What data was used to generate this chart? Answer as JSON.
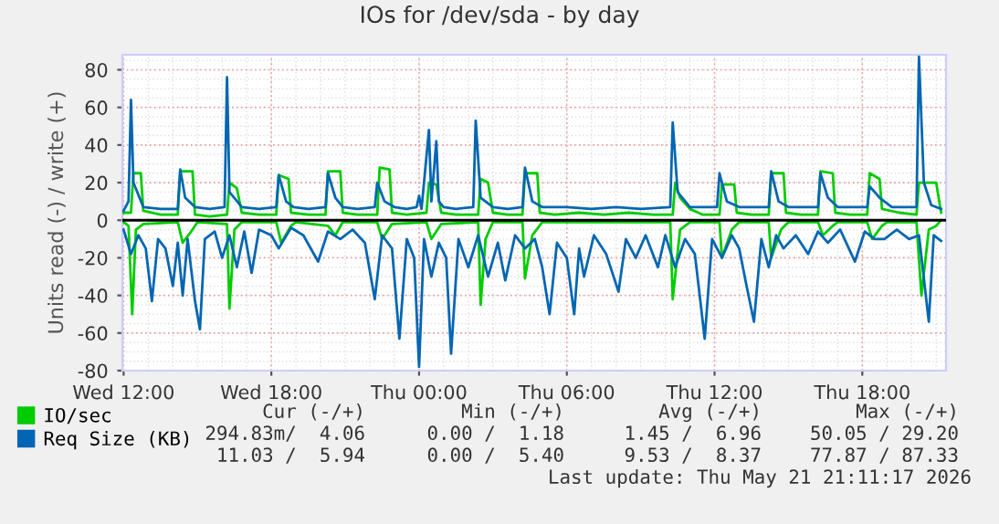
{
  "chart_data": {
    "type": "line",
    "title": "IOs for /dev/sda - by day",
    "ylabel": "Units read (-) / write (+)",
    "xlim": [
      "2026-05-20T11:57",
      "2026-05-21T21:24"
    ],
    "ylim": [
      -80,
      88
    ],
    "xticks": [
      {
        "value": "2026-05-20T12:00",
        "label": "Wed 12:00"
      },
      {
        "value": "2026-05-20T18:00",
        "label": "Wed 18:00"
      },
      {
        "value": "2026-05-21T00:00",
        "label": "Thu 00:00"
      },
      {
        "value": "2026-05-21T06:00",
        "label": "Thu 06:00"
      },
      {
        "value": "2026-05-21T12:00",
        "label": "Thu 12:00"
      },
      {
        "value": "2026-05-21T18:00",
        "label": "Thu 18:00"
      }
    ],
    "yticks": [
      -80,
      -60,
      -40,
      -20,
      0,
      20,
      40,
      60,
      80
    ],
    "grid": true,
    "legend": "bottom",
    "marker": "none",
    "line_style": "solid",
    "ref_lines": [
      {
        "axis": "y",
        "value": 0,
        "color": "#000000"
      }
    ],
    "series": [
      {
        "color": "#00cc00",
        "x": [
          "2026-05-20T12:00",
          "2026-05-20T12:12",
          "2026-05-20T12:21",
          "2026-05-20T12:30",
          "2026-05-20T12:48",
          "2026-05-20T14:12",
          "2026-05-20T14:24",
          "2026-05-20T14:48",
          "2026-05-20T15:00",
          "2026-05-20T16:12",
          "2026-05-20T16:18",
          "2026-05-20T16:30",
          "2026-05-20T16:48",
          "2026-05-20T18:12",
          "2026-05-20T18:24",
          "2026-05-20T18:48",
          "2026-05-20T19:00",
          "2026-05-20T20:18",
          "2026-05-20T20:36",
          "2026-05-20T20:54",
          "2026-05-20T22:18",
          "2026-05-20T22:30",
          "2026-05-20T22:54",
          "2026-05-21T00:18",
          "2026-05-21T00:30",
          "2026-05-21T00:54",
          "2026-05-21T02:24",
          "2026-05-21T02:30",
          "2026-05-21T02:42",
          "2026-05-21T03:00",
          "2026-05-21T04:12",
          "2026-05-21T04:18",
          "2026-05-21T04:36",
          "2026-05-21T05:00",
          "2026-05-21T10:12",
          "2026-05-21T10:18",
          "2026-05-21T10:36",
          "2026-05-21T11:00",
          "2026-05-21T12:12",
          "2026-05-21T12:18",
          "2026-05-21T12:42",
          "2026-05-21T13:00",
          "2026-05-21T14:12",
          "2026-05-21T14:18",
          "2026-05-21T14:42",
          "2026-05-21T15:00",
          "2026-05-21T16:12",
          "2026-05-21T16:24",
          "2026-05-21T16:48",
          "2026-05-21T17:00",
          "2026-05-21T18:12",
          "2026-05-21T18:24",
          "2026-05-21T18:48",
          "2026-05-21T19:00",
          "2026-05-21T20:12",
          "2026-05-21T20:24",
          "2026-05-21T20:42",
          "2026-05-21T21:00",
          "2026-05-21T21:12"
        ],
        "values": [
          -1,
          -3,
          -50,
          -5,
          -2,
          -1,
          -12,
          -5,
          -1,
          -2,
          -47,
          -5,
          -1,
          -1,
          -12,
          -3,
          -1,
          -3,
          -8,
          -1,
          -1,
          -10,
          -2,
          -1,
          -10,
          -2,
          -1,
          -45,
          -10,
          -1,
          -1,
          -31,
          -8,
          -1,
          -1,
          -42,
          -5,
          -1,
          -1,
          -20,
          -5,
          -1,
          -1,
          -20,
          -5,
          -1,
          -1,
          -8,
          -3,
          -1,
          -1,
          -10,
          -3,
          -1,
          -1,
          -40,
          -5,
          -3,
          0
        ]
      },
      {
        "color": "#0066b3",
        "x": [
          "2026-05-20T12:00",
          "2026-05-20T12:18",
          "2026-05-20T12:36",
          "2026-05-20T12:54",
          "2026-05-20T13:09",
          "2026-05-20T13:24",
          "2026-05-20T13:42",
          "2026-05-20T14:00",
          "2026-05-20T14:12",
          "2026-05-20T14:24",
          "2026-05-20T14:36",
          "2026-05-20T14:54",
          "2026-05-20T15:06",
          "2026-05-20T15:18",
          "2026-05-20T15:42",
          "2026-05-20T16:00",
          "2026-05-20T16:18",
          "2026-05-20T16:36",
          "2026-05-20T16:54",
          "2026-05-20T17:12",
          "2026-05-20T17:30",
          "2026-05-20T18:00",
          "2026-05-20T18:18",
          "2026-05-20T18:48",
          "2026-05-20T19:18",
          "2026-05-20T19:54",
          "2026-05-20T20:18",
          "2026-05-20T20:48",
          "2026-05-20T21:18",
          "2026-05-20T21:48",
          "2026-05-20T22:12",
          "2026-05-20T22:30",
          "2026-05-20T22:54",
          "2026-05-20T23:12",
          "2026-05-20T23:30",
          "2026-05-20T23:48",
          "2026-05-21T00:00",
          "2026-05-21T00:12",
          "2026-05-21T00:30",
          "2026-05-21T00:48",
          "2026-05-21T01:06",
          "2026-05-21T01:18",
          "2026-05-21T01:36",
          "2026-05-21T02:00",
          "2026-05-21T02:24",
          "2026-05-21T02:48",
          "2026-05-21T03:12",
          "2026-05-21T03:30",
          "2026-05-21T03:54",
          "2026-05-21T04:18",
          "2026-05-21T04:42",
          "2026-05-21T05:00",
          "2026-05-21T05:18",
          "2026-05-21T05:36",
          "2026-05-21T06:00",
          "2026-05-21T06:18",
          "2026-05-21T06:30",
          "2026-05-21T06:42",
          "2026-05-21T07:06",
          "2026-05-21T07:36",
          "2026-05-21T08:06",
          "2026-05-21T08:24",
          "2026-05-21T08:48",
          "2026-05-21T09:12",
          "2026-05-21T09:42",
          "2026-05-21T10:00",
          "2026-05-21T10:24",
          "2026-05-21T10:48",
          "2026-05-21T11:12",
          "2026-05-21T11:36",
          "2026-05-21T11:54",
          "2026-05-21T12:18",
          "2026-05-21T12:42",
          "2026-05-21T13:00",
          "2026-05-21T13:18",
          "2026-05-21T13:36",
          "2026-05-21T13:54",
          "2026-05-21T14:12",
          "2026-05-21T14:30",
          "2026-05-21T14:48",
          "2026-05-21T15:18",
          "2026-05-21T15:48",
          "2026-05-21T16:12",
          "2026-05-21T16:36",
          "2026-05-21T17:06",
          "2026-05-21T17:42",
          "2026-05-21T18:06",
          "2026-05-21T18:30",
          "2026-05-21T18:54",
          "2026-05-21T19:24",
          "2026-05-21T19:54",
          "2026-05-21T20:18",
          "2026-05-21T20:42",
          "2026-05-21T20:54",
          "2026-05-21T21:06",
          "2026-05-21T21:12"
        ],
        "values": [
          -5,
          -18,
          -8,
          -15,
          -43,
          -10,
          -15,
          -35,
          -12,
          -40,
          -10,
          -43,
          -58,
          -10,
          -6,
          -20,
          -8,
          -25,
          -6,
          -28,
          -5,
          -8,
          -15,
          -4,
          -8,
          -22,
          -6,
          -10,
          -5,
          -12,
          -42,
          -8,
          -15,
          -63,
          -10,
          -20,
          -78,
          -10,
          -30,
          -12,
          -20,
          -71,
          -10,
          -25,
          -8,
          -30,
          -12,
          -32,
          -8,
          -15,
          -10,
          -25,
          -50,
          -12,
          -20,
          -50,
          -15,
          -30,
          -8,
          -18,
          -38,
          -10,
          -20,
          -8,
          -25,
          -8,
          -25,
          -10,
          -18,
          -63,
          -10,
          -20,
          -8,
          -15,
          -35,
          -54,
          -10,
          -25,
          -8,
          -15,
          -8,
          -18,
          -6,
          -12,
          -5,
          -22,
          -6,
          -10,
          -10,
          -5,
          -10,
          -8,
          -54,
          -8,
          -10,
          -11
        ]
      },
      {
        "name": "IO/sec",
        "color": "#00cc00",
        "x": [
          "2026-05-20T12:00",
          "2026-05-20T12:18",
          "2026-05-20T12:24",
          "2026-05-20T12:42",
          "2026-05-20T12:48",
          "2026-05-20T13:30",
          "2026-05-20T14:12",
          "2026-05-20T14:18",
          "2026-05-20T14:48",
          "2026-05-20T14:54",
          "2026-05-20T15:30",
          "2026-05-20T16:12",
          "2026-05-20T16:18",
          "2026-05-20T16:36",
          "2026-05-20T16:48",
          "2026-05-20T17:30",
          "2026-05-20T18:12",
          "2026-05-20T18:18",
          "2026-05-20T18:42",
          "2026-05-20T18:48",
          "2026-05-20T19:30",
          "2026-05-20T20:12",
          "2026-05-20T20:18",
          "2026-05-20T20:48",
          "2026-05-20T20:54",
          "2026-05-20T21:30",
          "2026-05-20T22:18",
          "2026-05-20T22:24",
          "2026-05-20T22:48",
          "2026-05-20T22:54",
          "2026-05-20T23:30",
          "2026-05-21T00:18",
          "2026-05-21T00:24",
          "2026-05-21T00:42",
          "2026-05-21T00:54",
          "2026-05-21T01:30",
          "2026-05-21T02:24",
          "2026-05-21T02:30",
          "2026-05-21T02:48",
          "2026-05-21T03:00",
          "2026-05-21T03:36",
          "2026-05-21T04:12",
          "2026-05-21T04:18",
          "2026-05-21T04:48",
          "2026-05-21T04:54",
          "2026-05-21T05:30",
          "2026-05-21T06:30",
          "2026-05-21T07:30",
          "2026-05-21T08:30",
          "2026-05-21T09:30",
          "2026-05-21T10:18",
          "2026-05-21T10:24",
          "2026-05-21T10:36",
          "2026-05-21T11:00",
          "2026-05-21T11:30",
          "2026-05-21T12:12",
          "2026-05-21T12:18",
          "2026-05-21T12:48",
          "2026-05-21T12:54",
          "2026-05-21T13:30",
          "2026-05-21T14:12",
          "2026-05-21T14:18",
          "2026-05-21T14:48",
          "2026-05-21T14:54",
          "2026-05-21T15:30",
          "2026-05-21T16:12",
          "2026-05-21T16:18",
          "2026-05-21T16:48",
          "2026-05-21T16:54",
          "2026-05-21T17:30",
          "2026-05-21T18:12",
          "2026-05-21T18:18",
          "2026-05-21T18:42",
          "2026-05-21T18:48",
          "2026-05-21T19:30",
          "2026-05-21T20:12",
          "2026-05-21T20:18",
          "2026-05-21T21:00",
          "2026-05-21T21:12"
        ],
        "values": [
          4,
          4,
          25,
          25,
          5,
          3,
          3,
          26,
          26,
          3,
          2,
          3,
          20,
          17,
          4,
          3,
          3,
          24,
          22,
          4,
          3,
          3,
          26,
          26,
          4,
          3,
          3,
          28,
          27,
          4,
          3,
          4,
          20,
          19,
          4,
          3,
          3,
          22,
          20,
          4,
          3,
          3,
          25,
          25,
          4,
          3,
          4,
          3,
          4,
          3,
          3,
          20,
          12,
          6,
          3,
          3,
          19,
          19,
          4,
          3,
          3,
          25,
          25,
          4,
          3,
          3,
          26,
          25,
          4,
          3,
          3,
          25,
          22,
          6,
          4,
          3,
          20,
          20,
          4
        ]
      },
      {
        "name": "Req Size (KB)",
        "color": "#0066b3",
        "x": [
          "2026-05-20T12:00",
          "2026-05-20T12:12",
          "2026-05-20T12:18",
          "2026-05-20T12:24",
          "2026-05-20T12:48",
          "2026-05-20T13:30",
          "2026-05-20T14:12",
          "2026-05-20T14:18",
          "2026-05-20T14:30",
          "2026-05-20T14:54",
          "2026-05-20T15:30",
          "2026-05-20T16:06",
          "2026-05-20T16:12",
          "2026-05-20T16:18",
          "2026-05-20T16:48",
          "2026-05-20T17:30",
          "2026-05-20T18:12",
          "2026-05-20T18:18",
          "2026-05-20T18:36",
          "2026-05-20T18:54",
          "2026-05-20T19:30",
          "2026-05-20T20:12",
          "2026-05-20T20:18",
          "2026-05-20T20:36",
          "2026-05-20T20:54",
          "2026-05-20T21:30",
          "2026-05-20T22:12",
          "2026-05-20T22:18",
          "2026-05-20T22:36",
          "2026-05-20T23:00",
          "2026-05-20T23:30",
          "2026-05-20T23:54",
          "2026-05-21T00:00",
          "2026-05-21T00:06",
          "2026-05-21T00:24",
          "2026-05-21T00:30",
          "2026-05-21T00:42",
          "2026-05-21T00:48",
          "2026-05-21T01:00",
          "2026-05-21T01:30",
          "2026-05-21T02:12",
          "2026-05-21T02:18",
          "2026-05-21T02:30",
          "2026-05-21T03:00",
          "2026-05-21T03:36",
          "2026-05-21T04:12",
          "2026-05-21T04:18",
          "2026-05-21T04:36",
          "2026-05-21T05:00",
          "2026-05-21T06:00",
          "2026-05-21T07:00",
          "2026-05-21T08:00",
          "2026-05-21T09:00",
          "2026-05-21T10:12",
          "2026-05-21T10:18",
          "2026-05-21T10:30",
          "2026-05-21T11:00",
          "2026-05-21T12:06",
          "2026-05-21T12:12",
          "2026-05-21T12:30",
          "2026-05-21T13:00",
          "2026-05-21T14:12",
          "2026-05-21T14:18",
          "2026-05-21T14:36",
          "2026-05-21T15:00",
          "2026-05-21T16:12",
          "2026-05-21T16:18",
          "2026-05-21T16:36",
          "2026-05-21T17:00",
          "2026-05-21T18:12",
          "2026-05-21T18:18",
          "2026-05-21T18:42",
          "2026-05-21T19:12",
          "2026-05-21T20:12",
          "2026-05-21T20:18",
          "2026-05-21T20:30",
          "2026-05-21T20:48",
          "2026-05-21T21:12"
        ],
        "values": [
          5,
          10,
          64,
          20,
          7,
          6,
          6,
          27,
          12,
          7,
          6,
          7,
          76,
          15,
          7,
          6,
          7,
          24,
          10,
          7,
          6,
          7,
          25,
          12,
          7,
          6,
          7,
          20,
          10,
          7,
          6,
          7,
          13,
          6,
          48,
          10,
          42,
          10,
          7,
          6,
          7,
          53,
          12,
          7,
          6,
          7,
          28,
          10,
          7,
          7,
          6,
          7,
          6,
          7,
          52,
          15,
          7,
          7,
          25,
          10,
          7,
          7,
          26,
          10,
          7,
          7,
          25,
          12,
          7,
          7,
          18,
          12,
          7,
          7,
          87,
          20,
          8,
          6
        ]
      }
    ],
    "annotations": [
      "Cur (-/+)",
      "Min (-/+)",
      "Avg (-/+)",
      "Max (-/+)",
      "294.83m/  4.06",
      "0.00 /  1.18",
      "1.45 /  6.96",
      "50.05 / 29.20",
      "11.03 /  5.94",
      "0.00 /  5.40",
      "9.53 /  8.37",
      "77.87 / 87.33",
      "Last update: Thu May 21 21:11:17 2026"
    ]
  }
}
